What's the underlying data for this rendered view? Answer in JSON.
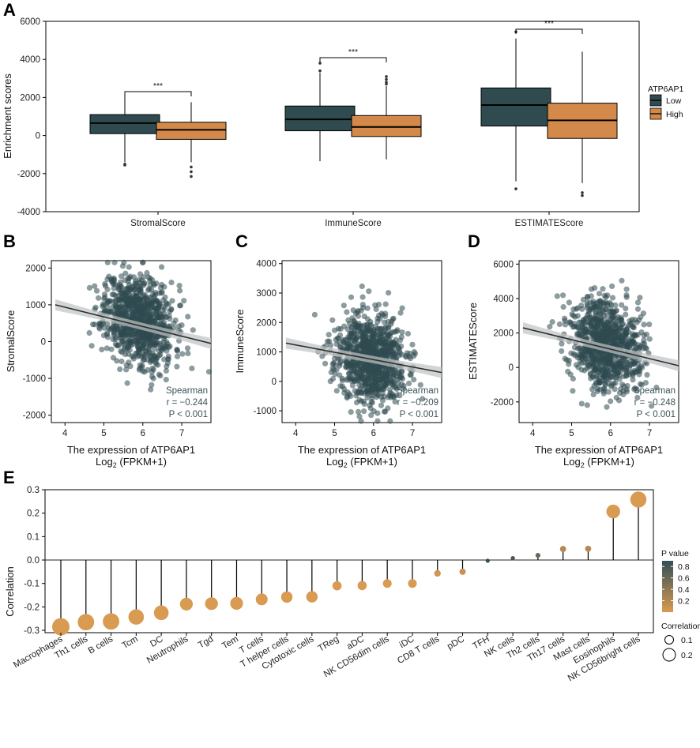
{
  "colors": {
    "low": "#2f4b50",
    "high": "#d3894a",
    "dot": "#2f4b50",
    "fit": "#2e2e2e",
    "band": "#bfc3c4",
    "pMin": "#d99a52",
    "pMax": "#334f56"
  },
  "panels": {
    "A": "A",
    "B": "B",
    "C": "C",
    "D": "D",
    "E": "E"
  },
  "chart_data": [
    {
      "id": "A",
      "type": "box",
      "title": "",
      "ylabel": "Enrichment scores",
      "ylim": [
        -4000,
        6000
      ],
      "yticks": [
        -4000,
        -2000,
        0,
        2000,
        4000,
        6000
      ],
      "categories": [
        "StromalScore",
        "ImmuneScore",
        "ESTIMATEScore"
      ],
      "legend": {
        "title": "ATP6AP1",
        "entries": [
          "Low",
          "High"
        ],
        "position": "right"
      },
      "significance": [
        "***",
        "***",
        "***"
      ],
      "groups": [
        {
          "category": "StromalScore",
          "series": "Low",
          "whisker_low": -1400,
          "q1": 100,
          "median": 650,
          "q3": 1100,
          "whisker_high": 2200,
          "outliers": [
            -1500,
            -1550
          ]
        },
        {
          "category": "StromalScore",
          "series": "High",
          "whisker_low": -1400,
          "q1": -200,
          "median": 300,
          "q3": 700,
          "whisker_high": 1750,
          "outliers": [
            -1650,
            -1900,
            -2150
          ]
        },
        {
          "category": "ImmuneScore",
          "series": "Low",
          "whisker_low": -1350,
          "q1": 250,
          "median": 850,
          "q3": 1550,
          "whisker_high": 3300,
          "outliers": [
            3400,
            3800
          ]
        },
        {
          "category": "ImmuneScore",
          "series": "High",
          "whisker_low": -1250,
          "q1": -50,
          "median": 450,
          "q3": 1050,
          "whisker_high": 2600,
          "outliers": [
            2700,
            2800,
            2950,
            3100
          ]
        },
        {
          "category": "ESTIMATEScore",
          "series": "Low",
          "whisker_low": -2400,
          "q1": 500,
          "median": 1600,
          "q3": 2500,
          "whisker_high": 5100,
          "outliers": [
            -2800,
            5450
          ]
        },
        {
          "category": "ESTIMATEScore",
          "series": "High",
          "whisker_low": -2500,
          "q1": -150,
          "median": 800,
          "q3": 1700,
          "whisker_high": 4400,
          "outliers": [
            -3000,
            -3150
          ]
        }
      ]
    },
    {
      "id": "B",
      "type": "scatter",
      "xlabel": "The expression of ATP6AP1",
      "xlabel2_base": "Log",
      "xlabel2_sub": "2",
      "xlabel2_rest": " (FPKM+1)",
      "ylabel": "StromalScore",
      "xlim": [
        3.65,
        7.75
      ],
      "ylim": [
        -2200,
        2200
      ],
      "xticks": [
        4,
        5,
        6,
        7
      ],
      "yticks": [
        -2000,
        -1000,
        0,
        1000,
        2000
      ],
      "fit": {
        "x0": 3.75,
        "y0": 1000,
        "x1": 7.75,
        "y1": -50
      },
      "stats": {
        "method": "Spearman",
        "r": "r = −0.244",
        "p": "P < 0.001"
      },
      "cloud": {
        "seed": 11,
        "n": 900,
        "cx": 5.9,
        "sx": 0.45,
        "mean_at_cx": 600,
        "slope": -260,
        "sy": 600
      }
    },
    {
      "id": "C",
      "type": "scatter",
      "xlabel": "The expression of ATP6AP1",
      "xlabel2_base": "Log",
      "xlabel2_sub": "2",
      "xlabel2_rest": " (FPKM+1)",
      "ylabel": "ImmuneScore",
      "xlim": [
        3.65,
        7.75
      ],
      "ylim": [
        -1400,
        4100
      ],
      "xticks": [
        4,
        5,
        6,
        7
      ],
      "yticks": [
        -1000,
        0,
        1000,
        2000,
        3000,
        4000
      ],
      "fit": {
        "x0": 3.75,
        "y0": 1300,
        "x1": 7.75,
        "y1": 300
      },
      "stats": {
        "method": "Spearman",
        "r": "r = −0.209",
        "p": "P < 0.001"
      },
      "cloud": {
        "seed": 23,
        "n": 900,
        "cx": 5.9,
        "sx": 0.45,
        "mean_at_cx": 750,
        "slope": -250,
        "sy": 750
      }
    },
    {
      "id": "D",
      "type": "scatter",
      "xlabel": "The expression of ATP6AP1",
      "xlabel2_base": "Log",
      "xlabel2_sub": "2",
      "xlabel2_rest": " (FPKM+1)",
      "ylabel": "ESTIMATEScore",
      "xlim": [
        3.65,
        7.75
      ],
      "ylim": [
        -3200,
        6200
      ],
      "xticks": [
        4,
        5,
        6,
        7
      ],
      "yticks": [
        -2000,
        0,
        2000,
        4000,
        6000
      ],
      "fit": {
        "x0": 3.75,
        "y0": 2300,
        "x1": 7.75,
        "y1": 100
      },
      "stats": {
        "method": "Spearman",
        "r": "r = −0.248",
        "p": "P < 0.001"
      },
      "cloud": {
        "seed": 37,
        "n": 900,
        "cx": 5.9,
        "sx": 0.45,
        "mean_at_cx": 1350,
        "slope": -550,
        "sy": 1300
      }
    },
    {
      "id": "E",
      "type": "lollipop",
      "ylabel": "Correlation",
      "ylim": [
        -0.31,
        0.3
      ],
      "yticks": [
        -0.3,
        -0.2,
        -0.1,
        0.0,
        0.1,
        0.2,
        0.3
      ],
      "ytick_labels": [
        "-0.3",
        "-0.2",
        "-0.1",
        "0.0",
        "0.1",
        "0.2",
        "0.3"
      ],
      "color_legend": {
        "title": "P value",
        "ticks": [
          0.8,
          0.6,
          0.4,
          0.2
        ],
        "labels": [
          "0.8",
          "0.6",
          "0.4",
          "0.2"
        ]
      },
      "size_legend": {
        "title": "Correlation",
        "values": [
          0.1,
          0.2
        ],
        "labels": [
          "0.1",
          "0.2"
        ]
      },
      "categories": [
        "Macrophages",
        "Th1 cells",
        "B cells",
        "Tcm",
        "DC",
        "Neutrophils",
        "Tgd",
        "Tem",
        "T cells",
        "T helper cells",
        "Cytotoxic cells",
        "TReg",
        "aDC",
        "NK CD56dim cells",
        "iDC",
        "CD8 T cells",
        "pDC",
        "TFH",
        "NK cells",
        "Th2 cells",
        "Th17 cells",
        "Mast cells",
        "Eosinophils",
        "NK CD56bright cells"
      ],
      "values": [
        -0.285,
        -0.265,
        -0.262,
        -0.243,
        -0.225,
        -0.188,
        -0.186,
        -0.185,
        -0.168,
        -0.158,
        -0.157,
        -0.11,
        -0.109,
        -0.1,
        -0.1,
        -0.057,
        -0.05,
        -0.003,
        0.008,
        0.02,
        0.047,
        0.048,
        0.207,
        0.258
      ],
      "pvalues": [
        0.0,
        0.0,
        0.0,
        0.0,
        0.0,
        0.0,
        0.0,
        0.0,
        0.0,
        0.0,
        0.0,
        0.0,
        0.0,
        0.0,
        0.0,
        0.05,
        0.1,
        0.95,
        0.8,
        0.6,
        0.2,
        0.2,
        0.0,
        0.0
      ]
    }
  ]
}
